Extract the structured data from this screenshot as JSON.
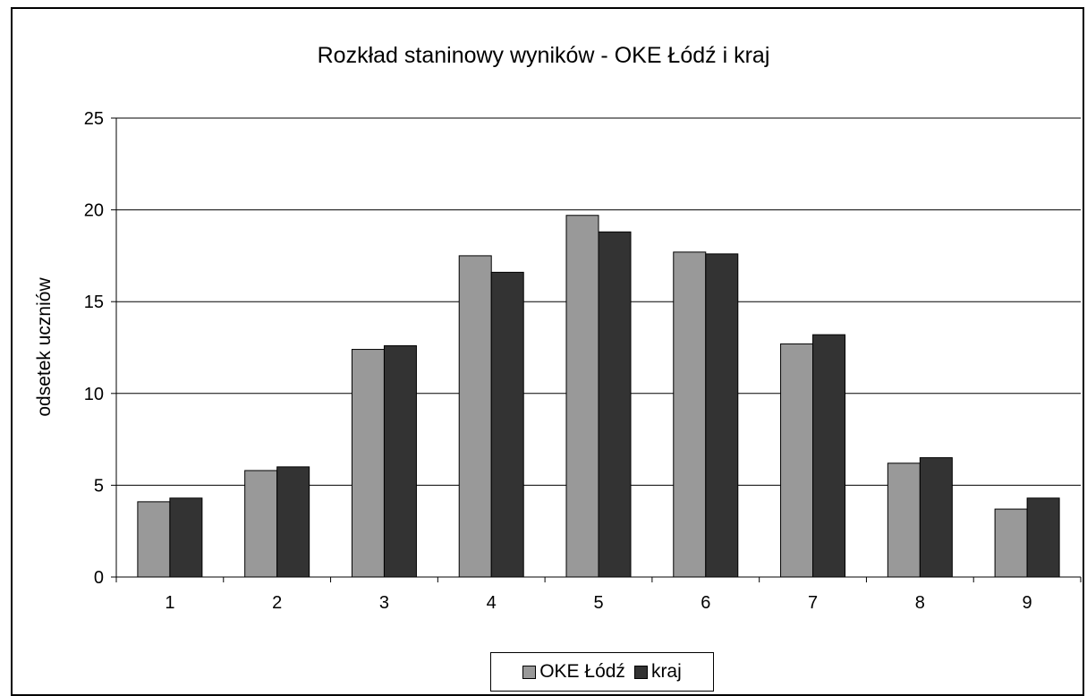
{
  "chart_data": {
    "type": "bar",
    "title": "Rozkład staninowy wyników - OKE Łódź i kraj",
    "xlabel": "",
    "ylabel": "odsetek uczniów",
    "categories": [
      "1",
      "2",
      "3",
      "4",
      "5",
      "6",
      "7",
      "8",
      "9"
    ],
    "series": [
      {
        "name": "OKE Łódź",
        "color": "#999999",
        "values": [
          4.1,
          5.8,
          12.4,
          17.5,
          19.7,
          17.7,
          12.7,
          6.2,
          3.7
        ]
      },
      {
        "name": "kraj",
        "color": "#333333",
        "values": [
          4.3,
          6.0,
          12.6,
          16.6,
          18.8,
          17.6,
          13.2,
          6.5,
          4.3
        ]
      }
    ],
    "ylim": [
      0,
      25
    ],
    "yticks": [
      "0",
      "5",
      "10",
      "15",
      "20",
      "25"
    ],
    "grid": true,
    "legend_position": "bottom"
  }
}
